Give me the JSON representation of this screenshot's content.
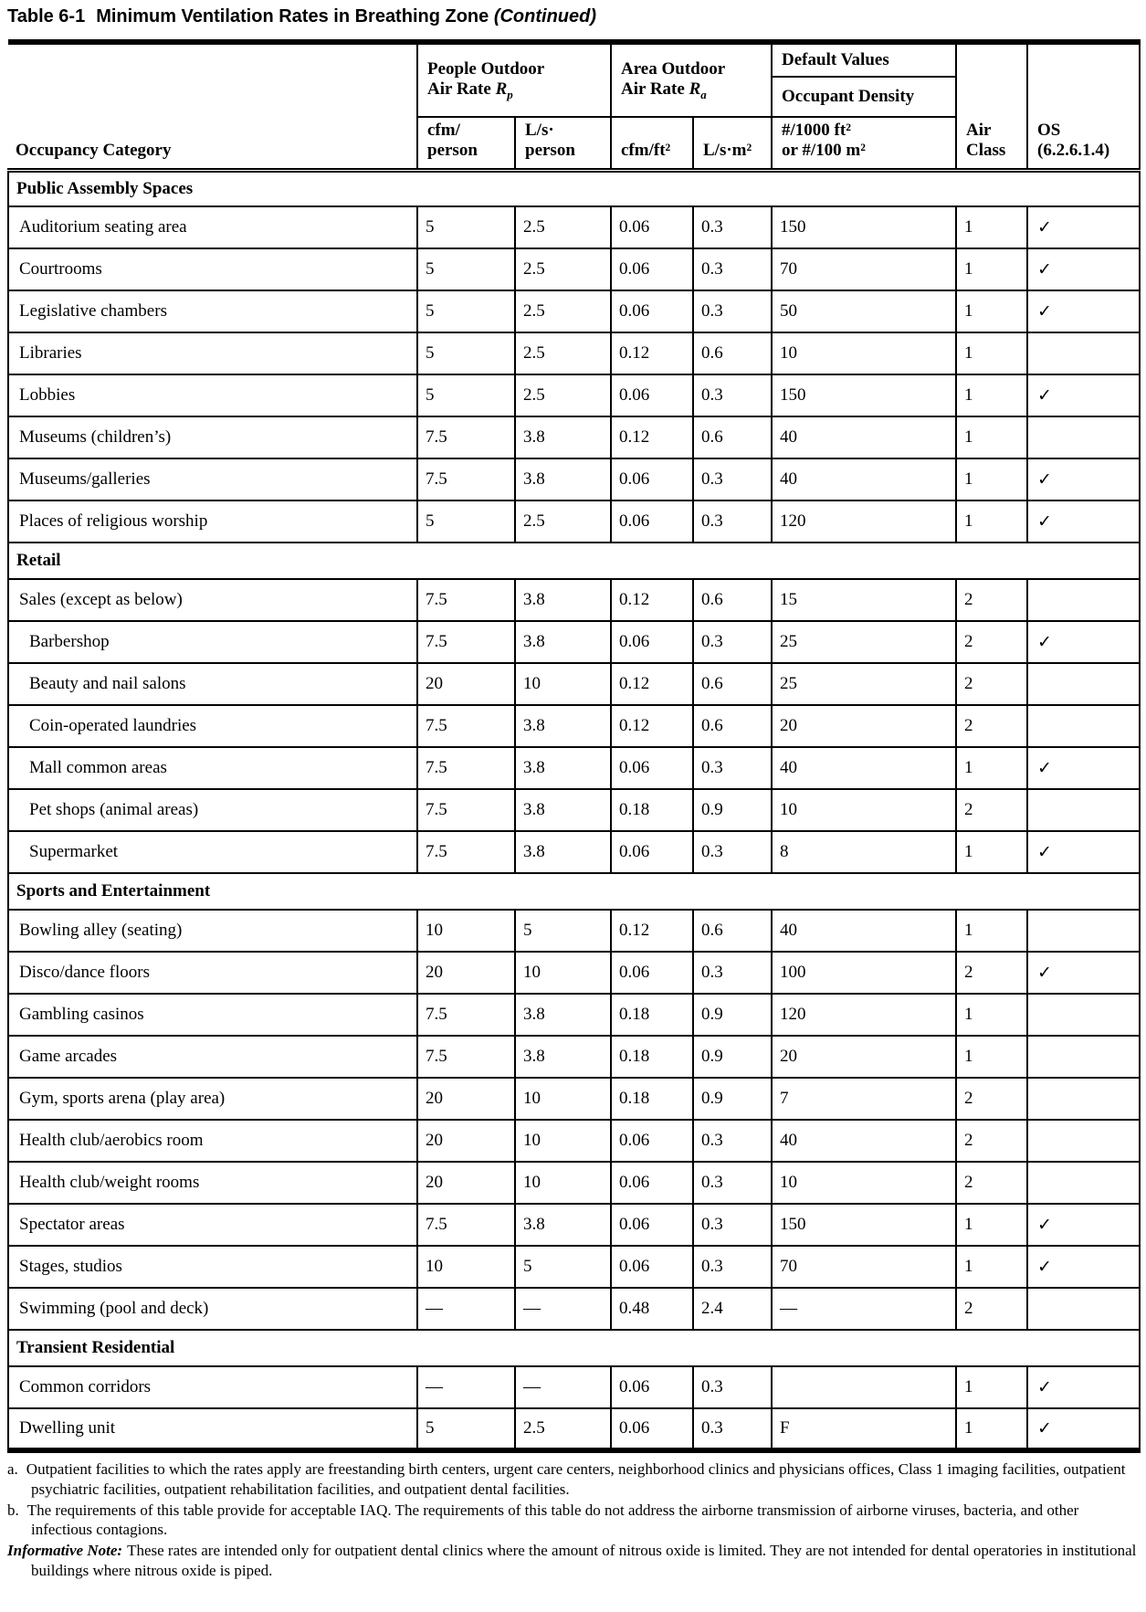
{
  "title": {
    "prefix": "Table 6-1",
    "main": "Minimum Ventilation Rates in Breathing Zone",
    "continued": "(Continued)"
  },
  "header": {
    "occupancy": "Occupancy Category",
    "people_group_text": "People Outdoor\nAir Rate ",
    "people_symbol": "R",
    "people_sub": "p",
    "area_group_text": "Area Outdoor\nAir Rate ",
    "area_symbol": "R",
    "area_sub": "a",
    "default_values": "Default Values",
    "occupant_density": "Occupant Density",
    "cfm_person": "cfm/\nperson",
    "ls_person": "L/s·\nperson",
    "cfm_ft2": "cfm/ft²",
    "ls_m2": "L/s·m²",
    "density": "#/1000 ft²\nor #/100 m²",
    "air_class": "Air\nClass",
    "os": "OS\n(6.2.6.1.4)"
  },
  "sections": [
    {
      "title": "Public Assembly Spaces",
      "rows": [
        {
          "c": "Auditorium seating area",
          "rp1": "5",
          "rp2": "2.5",
          "ra1": "0.06",
          "ra2": "0.3",
          "d": "150",
          "ac": "1",
          "os": "✓"
        },
        {
          "c": "Courtrooms",
          "rp1": "5",
          "rp2": "2.5",
          "ra1": "0.06",
          "ra2": "0.3",
          "d": "70",
          "ac": "1",
          "os": "✓"
        },
        {
          "c": "Legislative chambers",
          "rp1": "5",
          "rp2": "2.5",
          "ra1": "0.06",
          "ra2": "0.3",
          "d": "50",
          "ac": "1",
          "os": "✓"
        },
        {
          "c": "Libraries",
          "rp1": "5",
          "rp2": "2.5",
          "ra1": "0.12",
          "ra2": "0.6",
          "d": "10",
          "ac": "1",
          "os": ""
        },
        {
          "c": "Lobbies",
          "rp1": "5",
          "rp2": "2.5",
          "ra1": "0.06",
          "ra2": "0.3",
          "d": "150",
          "ac": "1",
          "os": "✓"
        },
        {
          "c": "Museums (children’s)",
          "rp1": "7.5",
          "rp2": "3.8",
          "ra1": "0.12",
          "ra2": "0.6",
          "d": "40",
          "ac": "1",
          "os": ""
        },
        {
          "c": "Museums/galleries",
          "rp1": "7.5",
          "rp2": "3.8",
          "ra1": "0.06",
          "ra2": "0.3",
          "d": "40",
          "ac": "1",
          "os": "✓"
        },
        {
          "c": "Places of religious worship",
          "rp1": "5",
          "rp2": "2.5",
          "ra1": "0.06",
          "ra2": "0.3",
          "d": "120",
          "ac": "1",
          "os": "✓"
        }
      ]
    },
    {
      "title": "Retail",
      "rows": [
        {
          "c": "Sales (except as below)",
          "rp1": "7.5",
          "rp2": "3.8",
          "ra1": "0.12",
          "ra2": "0.6",
          "d": "15",
          "ac": "2",
          "os": ""
        },
        {
          "c": "Barbershop",
          "ind": true,
          "rp1": "7.5",
          "rp2": "3.8",
          "ra1": "0.06",
          "ra2": "0.3",
          "d": "25",
          "ac": "2",
          "os": "✓"
        },
        {
          "c": "Beauty and nail salons",
          "ind": true,
          "rp1": "20",
          "rp2": "10",
          "ra1": "0.12",
          "ra2": "0.6",
          "d": "25",
          "ac": "2",
          "os": ""
        },
        {
          "c": "Coin-operated laundries",
          "ind": true,
          "rp1": "7.5",
          "rp2": "3.8",
          "ra1": "0.12",
          "ra2": "0.6",
          "d": "20",
          "ac": "2",
          "os": ""
        },
        {
          "c": "Mall common areas",
          "ind": true,
          "rp1": "7.5",
          "rp2": "3.8",
          "ra1": "0.06",
          "ra2": "0.3",
          "d": "40",
          "ac": "1",
          "os": "✓"
        },
        {
          "c": "Pet shops (animal areas)",
          "ind": true,
          "rp1": "7.5",
          "rp2": "3.8",
          "ra1": "0.18",
          "ra2": "0.9",
          "d": "10",
          "ac": "2",
          "os": ""
        },
        {
          "c": "Supermarket",
          "ind": true,
          "rp1": "7.5",
          "rp2": "3.8",
          "ra1": "0.06",
          "ra2": "0.3",
          "d": "8",
          "ac": "1",
          "os": "✓"
        }
      ]
    },
    {
      "title": "Sports and Entertainment",
      "rows": [
        {
          "c": "Bowling alley (seating)",
          "rp1": "10",
          "rp2": "5",
          "ra1": "0.12",
          "ra2": "0.6",
          "d": "40",
          "ac": "1",
          "os": ""
        },
        {
          "c": "Disco/dance floors",
          "rp1": "20",
          "rp2": "10",
          "ra1": "0.06",
          "ra2": "0.3",
          "d": "100",
          "ac": "2",
          "os": "✓"
        },
        {
          "c": "Gambling casinos",
          "rp1": "7.5",
          "rp2": "3.8",
          "ra1": "0.18",
          "ra2": "0.9",
          "d": "120",
          "ac": "1",
          "os": ""
        },
        {
          "c": "Game arcades",
          "rp1": "7.5",
          "rp2": "3.8",
          "ra1": "0.18",
          "ra2": "0.9",
          "d": "20",
          "ac": "1",
          "os": ""
        },
        {
          "c": "Gym, sports arena (play area)",
          "rp1": "20",
          "rp2": "10",
          "ra1": "0.18",
          "ra2": "0.9",
          "d": "7",
          "ac": "2",
          "os": ""
        },
        {
          "c": "Health club/aerobics room",
          "rp1": "20",
          "rp2": "10",
          "ra1": "0.06",
          "ra2": "0.3",
          "d": "40",
          "ac": "2",
          "os": ""
        },
        {
          "c": "Health club/weight rooms",
          "rp1": "20",
          "rp2": "10",
          "ra1": "0.06",
          "ra2": "0.3",
          "d": "10",
          "ac": "2",
          "os": ""
        },
        {
          "c": "Spectator areas",
          "rp1": "7.5",
          "rp2": "3.8",
          "ra1": "0.06",
          "ra2": "0.3",
          "d": "150",
          "ac": "1",
          "os": "✓"
        },
        {
          "c": "Stages, studios",
          "rp1": "10",
          "rp2": "5",
          "ra1": "0.06",
          "ra2": "0.3",
          "d": "70",
          "ac": "1",
          "os": "✓"
        },
        {
          "c": "Swimming (pool and deck)",
          "rp1": "—",
          "rp2": "—",
          "ra1": "0.48",
          "ra2": "2.4",
          "d": "—",
          "ac": "2",
          "os": ""
        }
      ]
    },
    {
      "title": "Transient Residential",
      "rows": [
        {
          "c": "Common corridors",
          "rp1": "—",
          "rp2": "—",
          "ra1": "0.06",
          "ra2": "0.3",
          "d": "",
          "ac": "1",
          "os": "✓"
        },
        {
          "c": "Dwelling unit",
          "rp1": "5",
          "rp2": "2.5",
          "ra1": "0.06",
          "ra2": "0.3",
          "d": "F",
          "ac": "1",
          "os": "✓"
        }
      ]
    }
  ],
  "footnotes": {
    "a_label": "a.",
    "a_text": "Outpatient facilities to which the rates apply are freestanding birth centers, urgent care centers, neighborhood clinics and physicians offices, Class 1 imaging facilities, outpatient psychiatric facilities, outpatient rehabilitation facilities, and outpatient dental facilities.",
    "b_label": "b.",
    "b_text": "The requirements of this table provide for acceptable IAQ. The requirements of this table do not address the airborne transmission of airborne viruses, bacteria, and other infectious contagions.",
    "note_label": "Informative Note:",
    "note_text": "These rates are intended only for outpatient dental clinics where the amount of nitrous oxide is limited. They are not intended for dental operatories in institutional buildings where nitrous oxide is piped."
  }
}
